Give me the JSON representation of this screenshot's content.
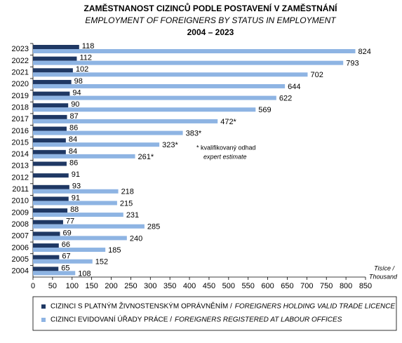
{
  "chart_data": {
    "type": "hbar",
    "title": "ZAMĚSTNANOST CIZINCŮ PODLE POSTAVENÍ V ZAMĚSTNÁNÍ",
    "subtitle": "EMPLOYMENT OF FOREIGNERS BY STATUS IN EMPLOYMENT",
    "period": "2004 – 2023",
    "categories": [
      "2023",
      "2022",
      "2021",
      "2020",
      "2019",
      "2018",
      "2017",
      "2016",
      "2015",
      "2014",
      "2013",
      "2012",
      "2011",
      "2010",
      "2009",
      "2008",
      "2007",
      "2006",
      "2005",
      "2004"
    ],
    "series": [
      {
        "name": "CIZINCI S PLATNÝM ŽIVNOSTENSKÝM OPRÁVNĚNÍM /",
        "name_en": "FOREIGNERS HOLDING VALID TRADE LICENCE",
        "color": "#1f3864",
        "values": [
          118,
          112,
          102,
          98,
          94,
          90,
          87,
          86,
          84,
          84,
          86,
          91,
          93,
          91,
          88,
          77,
          69,
          66,
          67,
          65
        ]
      },
      {
        "name": "CIZINCI EVIDOVANÍ ÚŘADY PRÁCE /",
        "name_en": "FOREIGNERS REGISTERED AT LABOUR OFFICES",
        "color": "#8eb4e3",
        "values": [
          824,
          793,
          702,
          644,
          622,
          569,
          472,
          383,
          323,
          261,
          null,
          null,
          218,
          215,
          231,
          285,
          240,
          185,
          152,
          108
        ],
        "value_labels": [
          "824",
          "793",
          "702",
          "644",
          "622",
          "569",
          "472*",
          "383*",
          "323*",
          "261*",
          null,
          null,
          "218",
          "215",
          "231",
          "285",
          "240",
          "185",
          "152",
          "108"
        ]
      }
    ],
    "xlim": [
      0,
      850
    ],
    "xticks": [
      0,
      50,
      100,
      150,
      200,
      250,
      300,
      350,
      400,
      450,
      500,
      550,
      600,
      650,
      700,
      750,
      800,
      850
    ],
    "x_label": [
      "Tisíce /",
      "Thousand"
    ],
    "annotation": [
      "* kvalifikovaný odhad",
      "expert estimate"
    ],
    "grid": false
  }
}
